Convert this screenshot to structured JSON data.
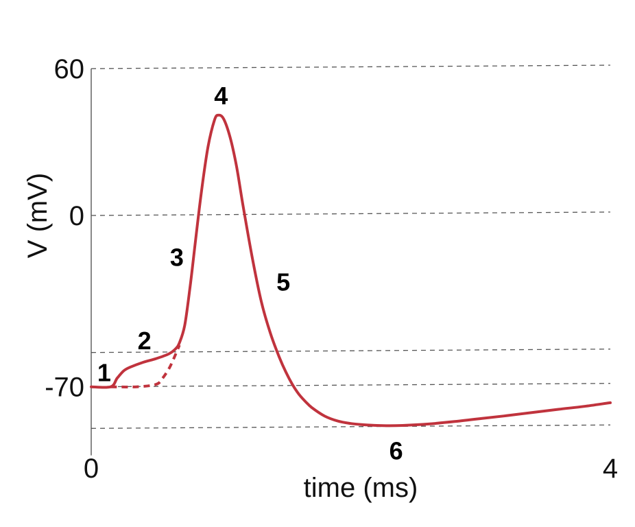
{
  "chart_data": {
    "type": "line",
    "xlabel": "time (ms)",
    "ylabel": "V (mV)",
    "xlim": [
      0,
      4
    ],
    "ylim": [
      -84,
      60
    ],
    "x_ticks": [
      {
        "value": 0,
        "label": "0"
      },
      {
        "value": 4,
        "label": "4"
      }
    ],
    "y_ticks": [
      {
        "value": 60,
        "label": "60"
      },
      {
        "value": 0,
        "label": "0"
      },
      {
        "value": -70,
        "label": "-70"
      }
    ],
    "grid_levels": [
      60,
      0,
      -56,
      -70,
      -87
    ],
    "grid": true,
    "legend": "none",
    "colors": {
      "trace": "#c0333d"
    },
    "series": [
      {
        "style": "solid",
        "x": [
          0,
          0.15,
          0.2,
          0.25,
          0.3,
          0.4,
          0.5,
          0.6,
          0.65,
          0.68,
          0.72,
          0.76,
          0.8,
          0.85,
          0.9,
          0.95,
          0.98,
          1.02,
          1.07,
          1.12,
          1.17,
          1.24,
          1.31,
          1.38,
          1.45,
          1.5,
          1.55,
          1.6,
          1.65,
          1.7,
          1.8,
          1.9,
          2.0,
          2.1,
          2.2,
          2.3,
          2.4,
          2.6,
          2.8,
          3.0,
          3.2,
          3.4,
          3.6,
          3.8,
          4.0
        ],
        "y": [
          -70,
          -70,
          -66.5,
          -63.5,
          -62,
          -60,
          -58.5,
          -56.5,
          -54.5,
          -52,
          -45,
          -30,
          -12,
          10,
          28,
          39,
          41,
          39.5,
          32,
          20,
          4,
          -17,
          -35,
          -48,
          -58,
          -64,
          -69,
          -73,
          -76,
          -78.5,
          -82,
          -84,
          -85,
          -85.5,
          -85.8,
          -85.9,
          -85.8,
          -85.2,
          -84.2,
          -83,
          -81.8,
          -80.5,
          -79.2,
          -78,
          -76.5
        ]
      },
      {
        "style": "dashed",
        "x": [
          0.15,
          0.35,
          0.5,
          0.55,
          0.6,
          0.64,
          0.68
        ],
        "y": [
          -70,
          -70,
          -69,
          -66.5,
          -62.5,
          -58,
          -53
        ]
      }
    ],
    "annotations": [
      {
        "text": "1",
        "x": 0.1,
        "y": -64
      },
      {
        "text": "2",
        "x": 0.41,
        "y": -51
      },
      {
        "text": "3",
        "x": 0.66,
        "y": -17
      },
      {
        "text": "4",
        "x": 1.0,
        "y": 49
      },
      {
        "text": "5",
        "x": 1.48,
        "y": -27
      },
      {
        "text": "6",
        "x": 2.35,
        "y": -96
      }
    ]
  }
}
